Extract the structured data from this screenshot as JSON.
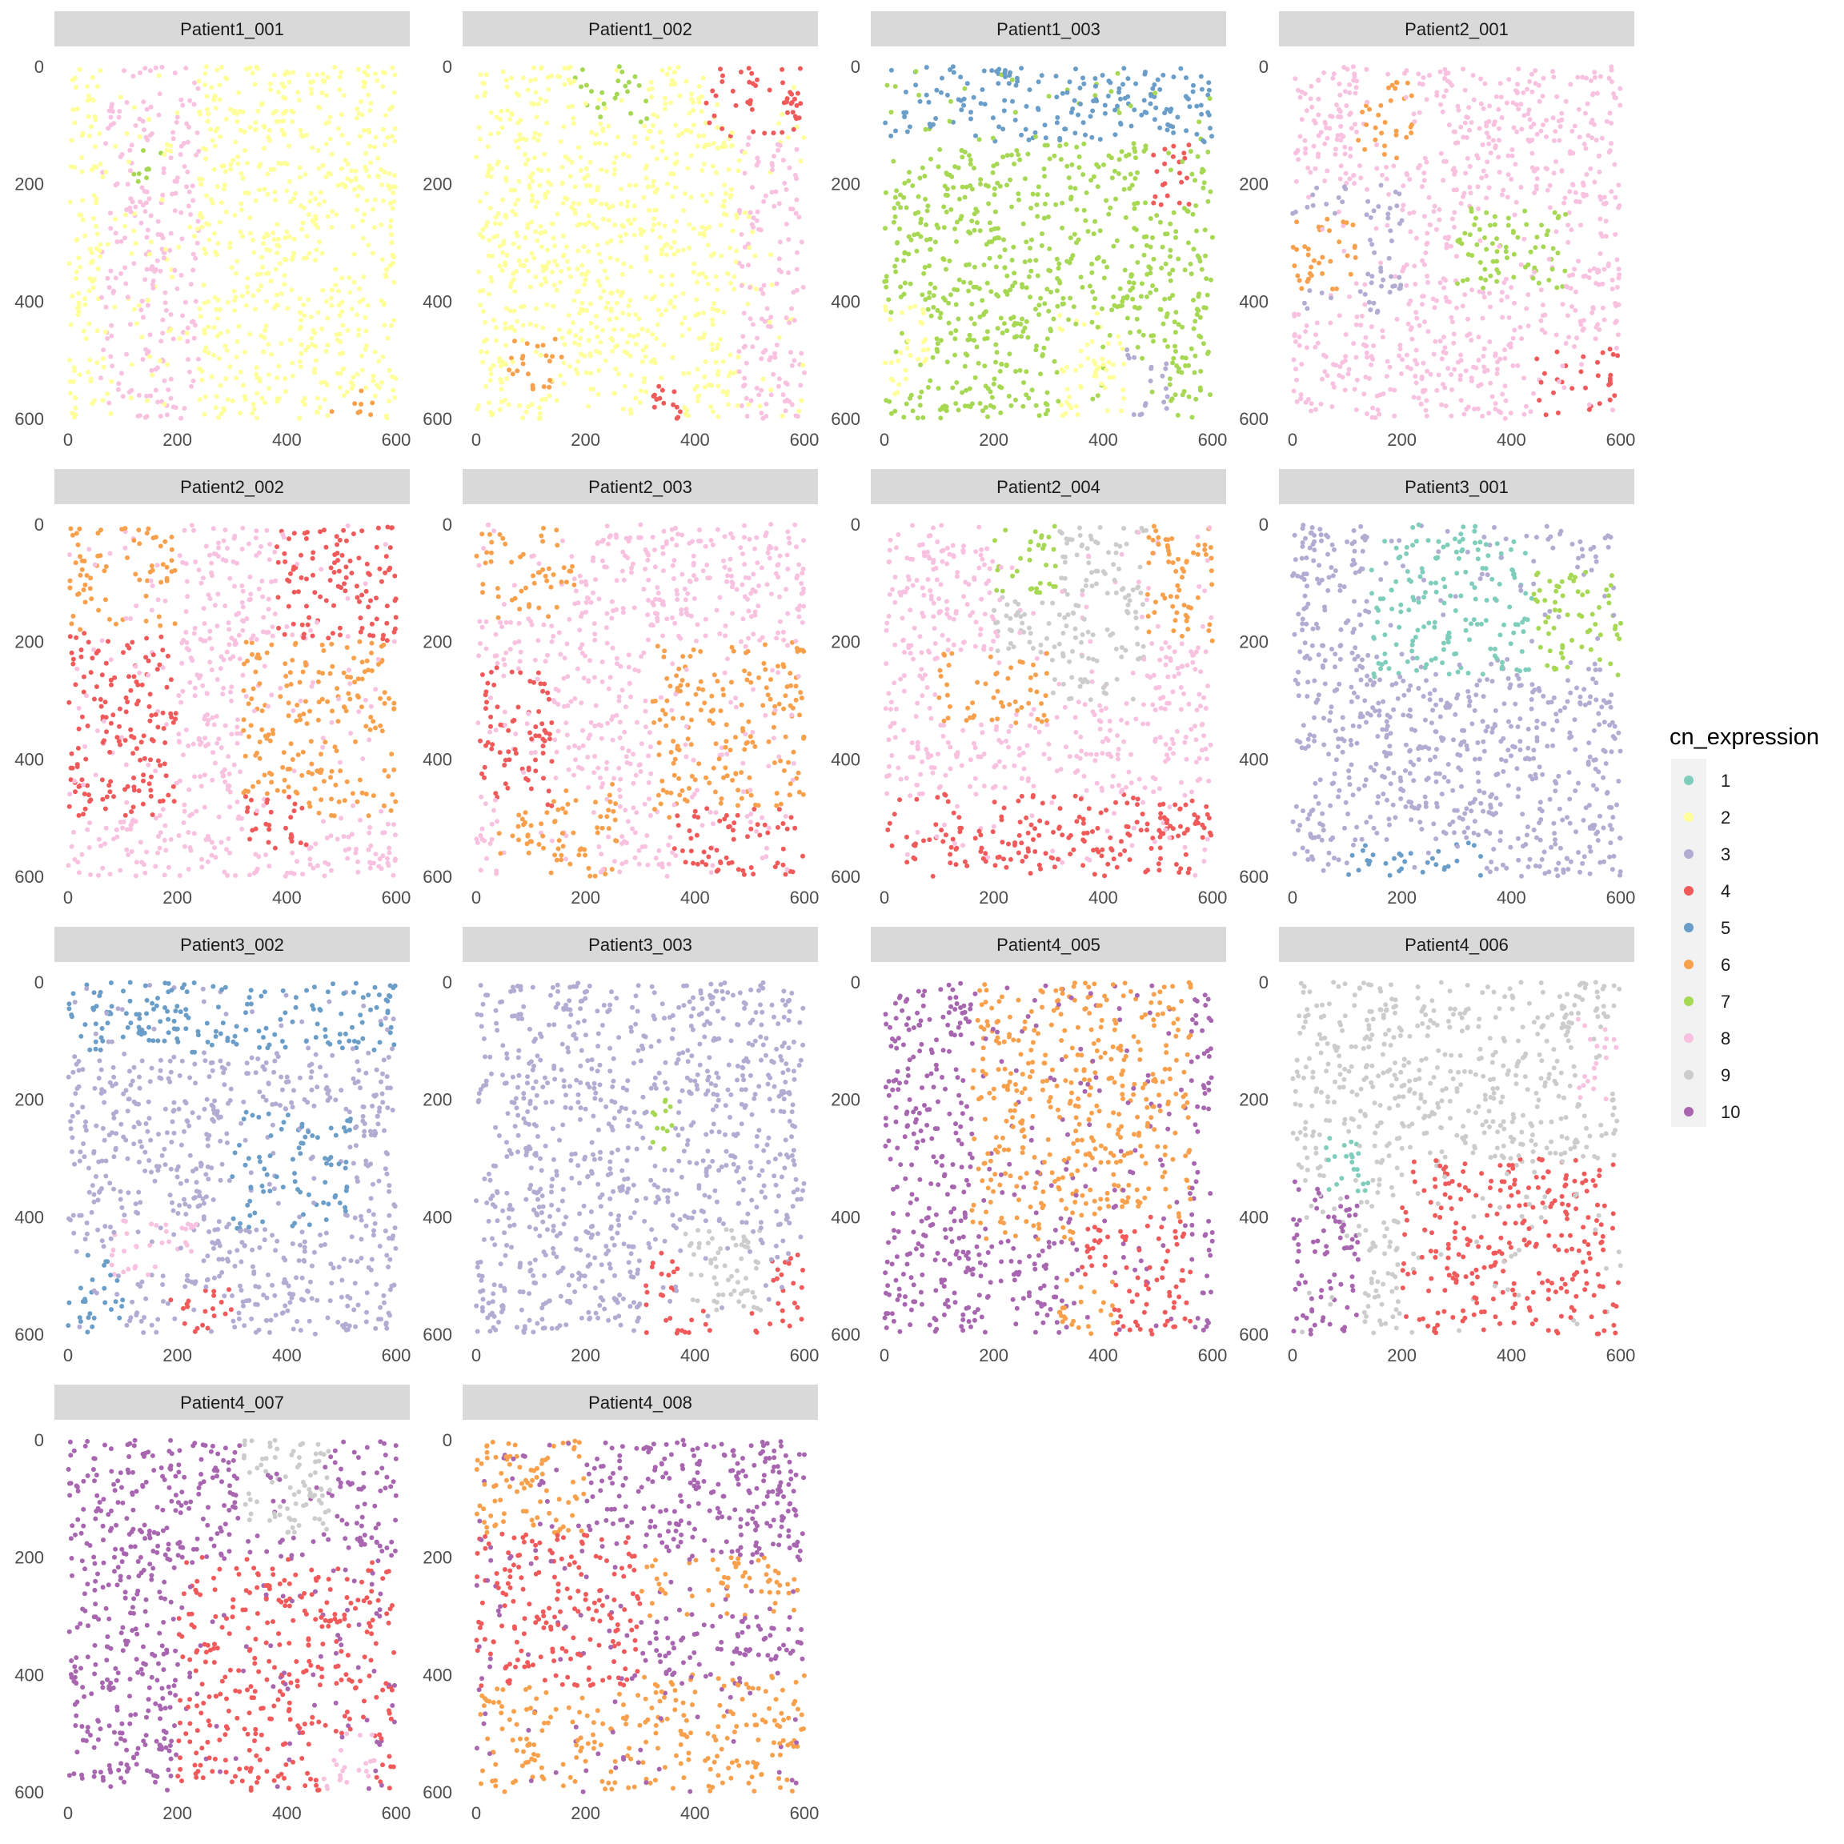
{
  "chart_data": {
    "type": "scatter",
    "xlim": [
      0,
      600
    ],
    "ylim": [
      0,
      600
    ],
    "y_reversed": true,
    "x_ticks": [
      0,
      200,
      400,
      600
    ],
    "y_ticks": [
      0,
      200,
      400,
      600
    ],
    "grid": false,
    "legend_placement": "right",
    "legend": {
      "title": "cn_expression",
      "entries": [
        {
          "label": "1",
          "color": "#7fcdbb"
        },
        {
          "label": "2",
          "color": "#ffff99"
        },
        {
          "label": "3",
          "color": "#b2abd2"
        },
        {
          "label": "4",
          "color": "#f15a5a"
        },
        {
          "label": "5",
          "color": "#6a9ec8"
        },
        {
          "label": "6",
          "color": "#f8a04c"
        },
        {
          "label": "7",
          "color": "#a6d853"
        },
        {
          "label": "8",
          "color": "#f8c1e0"
        },
        {
          "label": "9",
          "color": "#cccccc"
        },
        {
          "label": "10",
          "color": "#a866b0"
        }
      ]
    },
    "panels": [
      {
        "title": "Patient1_001",
        "dominant": "2",
        "regions": [
          {
            "label": "8",
            "x": [
              60,
              240
            ],
            "y": [
              0,
              600
            ]
          },
          {
            "label": "7",
            "x": [
              120,
              170
            ],
            "y": [
              130,
              200
            ]
          },
          {
            "label": "6",
            "x": [
              480,
              560
            ],
            "y": [
              550,
              600
            ]
          }
        ]
      },
      {
        "title": "Patient1_002",
        "dominant": "2",
        "regions": [
          {
            "label": "8",
            "x": [
              480,
              600
            ],
            "y": [
              60,
              600
            ]
          },
          {
            "label": "4",
            "x": [
              420,
              600
            ],
            "y": [
              0,
              120
            ]
          },
          {
            "label": "7",
            "x": [
              180,
              320
            ],
            "y": [
              0,
              100
            ]
          },
          {
            "label": "6",
            "x": [
              60,
              160
            ],
            "y": [
              450,
              560
            ]
          },
          {
            "label": "4",
            "x": [
              320,
              380
            ],
            "y": [
              540,
              600
            ]
          }
        ]
      },
      {
        "title": "Patient1_003",
        "dominant": "7",
        "regions": [
          {
            "label": "5",
            "x": [
              0,
              600
            ],
            "y": [
              0,
              130
            ]
          },
          {
            "label": "2",
            "x": [
              0,
              80
            ],
            "y": [
              400,
              560
            ]
          },
          {
            "label": "2",
            "x": [
              320,
              440
            ],
            "y": [
              420,
              600
            ]
          },
          {
            "label": "4",
            "x": [
              480,
              560
            ],
            "y": [
              120,
              240
            ]
          },
          {
            "label": "3",
            "x": [
              440,
              520
            ],
            "y": [
              480,
              600
            ]
          }
        ]
      },
      {
        "title": "Patient2_001",
        "dominant": "8",
        "regions": [
          {
            "label": "3",
            "x": [
              0,
              200
            ],
            "y": [
              200,
              420
            ]
          },
          {
            "label": "6",
            "x": [
              0,
              120
            ],
            "y": [
              260,
              380
            ]
          },
          {
            "label": "7",
            "x": [
              300,
              500
            ],
            "y": [
              240,
              380
            ]
          },
          {
            "label": "4",
            "x": [
              440,
              600
            ],
            "y": [
              480,
              600
            ]
          },
          {
            "label": "6",
            "x": [
              120,
              220
            ],
            "y": [
              20,
              160
            ]
          }
        ]
      },
      {
        "title": "Patient2_002",
        "dominant": "8",
        "regions": [
          {
            "label": "6",
            "x": [
              320,
              600
            ],
            "y": [
              200,
              500
            ]
          },
          {
            "label": "6",
            "x": [
              0,
              200
            ],
            "y": [
              0,
              180
            ]
          },
          {
            "label": "4",
            "x": [
              0,
              200
            ],
            "y": [
              180,
              500
            ]
          },
          {
            "label": "4",
            "x": [
              380,
              600
            ],
            "y": [
              0,
              200
            ]
          },
          {
            "label": "4",
            "x": [
              320,
              440
            ],
            "y": [
              460,
              560
            ]
          }
        ]
      },
      {
        "title": "Patient2_003",
        "dominant": "8",
        "regions": [
          {
            "label": "6",
            "x": [
              320,
              600
            ],
            "y": [
              200,
              500
            ]
          },
          {
            "label": "6",
            "x": [
              40,
              260
            ],
            "y": [
              440,
              600
            ]
          },
          {
            "label": "6",
            "x": [
              0,
              180
            ],
            "y": [
              0,
              160
            ]
          },
          {
            "label": "4",
            "x": [
              360,
              600
            ],
            "y": [
              480,
              600
            ]
          },
          {
            "label": "4",
            "x": [
              0,
              140
            ],
            "y": [
              240,
              480
            ]
          }
        ]
      },
      {
        "title": "Patient2_004",
        "dominant": "8",
        "regions": [
          {
            "label": "1",
            "x": [
              260,
              420
            ],
            "y": [
              60,
              260
            ]
          },
          {
            "label": "9",
            "x": [
              200,
              480
            ],
            "y": [
              0,
              300
            ]
          },
          {
            "label": "4",
            "x": [
              0,
              600
            ],
            "y": [
              460,
              600
            ]
          },
          {
            "label": "6",
            "x": [
              480,
              600
            ],
            "y": [
              0,
              200
            ]
          },
          {
            "label": "6",
            "x": [
              100,
              300
            ],
            "y": [
              220,
              340
            ]
          },
          {
            "label": "7",
            "x": [
              200,
              320
            ],
            "y": [
              0,
              120
            ]
          }
        ]
      },
      {
        "title": "Patient3_001",
        "dominant": "3",
        "regions": [
          {
            "label": "1",
            "x": [
              140,
              440
            ],
            "y": [
              0,
              260
            ]
          },
          {
            "label": "7",
            "x": [
              440,
              600
            ],
            "y": [
              80,
              260
            ]
          },
          {
            "label": "5",
            "x": [
              100,
              360
            ],
            "y": [
              540,
              600
            ]
          }
        ]
      },
      {
        "title": "Patient3_002",
        "dominant": "3",
        "regions": [
          {
            "label": "5",
            "x": [
              300,
              520
            ],
            "y": [
              220,
              420
            ]
          },
          {
            "label": "5",
            "x": [
              0,
              600
            ],
            "y": [
              0,
              120
            ]
          },
          {
            "label": "5",
            "x": [
              0,
              100
            ],
            "y": [
              460,
              600
            ]
          },
          {
            "label": "4",
            "x": [
              180,
              300
            ],
            "y": [
              520,
              600
            ]
          },
          {
            "label": "8",
            "x": [
              80,
              240
            ],
            "y": [
              400,
              500
            ]
          }
        ]
      },
      {
        "title": "Patient3_003",
        "dominant": "3",
        "regions": [
          {
            "label": "4",
            "x": [
              300,
              600
            ],
            "y": [
              460,
              600
            ]
          },
          {
            "label": "9",
            "x": [
              380,
              520
            ],
            "y": [
              420,
              560
            ]
          },
          {
            "label": "7",
            "x": [
              320,
              360
            ],
            "y": [
              200,
              300
            ]
          }
        ]
      },
      {
        "title": "Patient4_005",
        "dominant": "10",
        "regions": [
          {
            "label": "6",
            "x": [
              160,
              560
            ],
            "y": [
              0,
              440
            ]
          },
          {
            "label": "4",
            "x": [
              360,
              560
            ],
            "y": [
              400,
              600
            ]
          },
          {
            "label": "6",
            "x": [
              320,
              420
            ],
            "y": [
              500,
              600
            ]
          }
        ]
      },
      {
        "title": "Patient4_006",
        "dominant": "9",
        "regions": [
          {
            "label": "4",
            "x": [
              200,
              600
            ],
            "y": [
              300,
              600
            ]
          },
          {
            "label": "10",
            "x": [
              0,
              120
            ],
            "y": [
              340,
              600
            ]
          },
          {
            "label": "1",
            "x": [
              60,
              140
            ],
            "y": [
              260,
              360
            ]
          },
          {
            "label": "8",
            "x": [
              520,
              600
            ],
            "y": [
              60,
              200
            ]
          }
        ]
      },
      {
        "title": "Patient4_007",
        "dominant": "10",
        "regions": [
          {
            "label": "4",
            "x": [
              200,
              600
            ],
            "y": [
              200,
              600
            ]
          },
          {
            "label": "9",
            "x": [
              320,
              480
            ],
            "y": [
              0,
              160
            ]
          },
          {
            "label": "8",
            "x": [
              460,
              560
            ],
            "y": [
              500,
              600
            ]
          }
        ]
      },
      {
        "title": "Patient4_008",
        "dominant": "10",
        "regions": [
          {
            "label": "6",
            "x": [
              0,
              600
            ],
            "y": [
              400,
              600
            ]
          },
          {
            "label": "6",
            "x": [
              300,
              600
            ],
            "y": [
              200,
              300
            ]
          },
          {
            "label": "6",
            "x": [
              0,
              200
            ],
            "y": [
              0,
              160
            ]
          },
          {
            "label": "4",
            "x": [
              0,
              300
            ],
            "y": [
              160,
              420
            ]
          }
        ]
      }
    ]
  }
}
